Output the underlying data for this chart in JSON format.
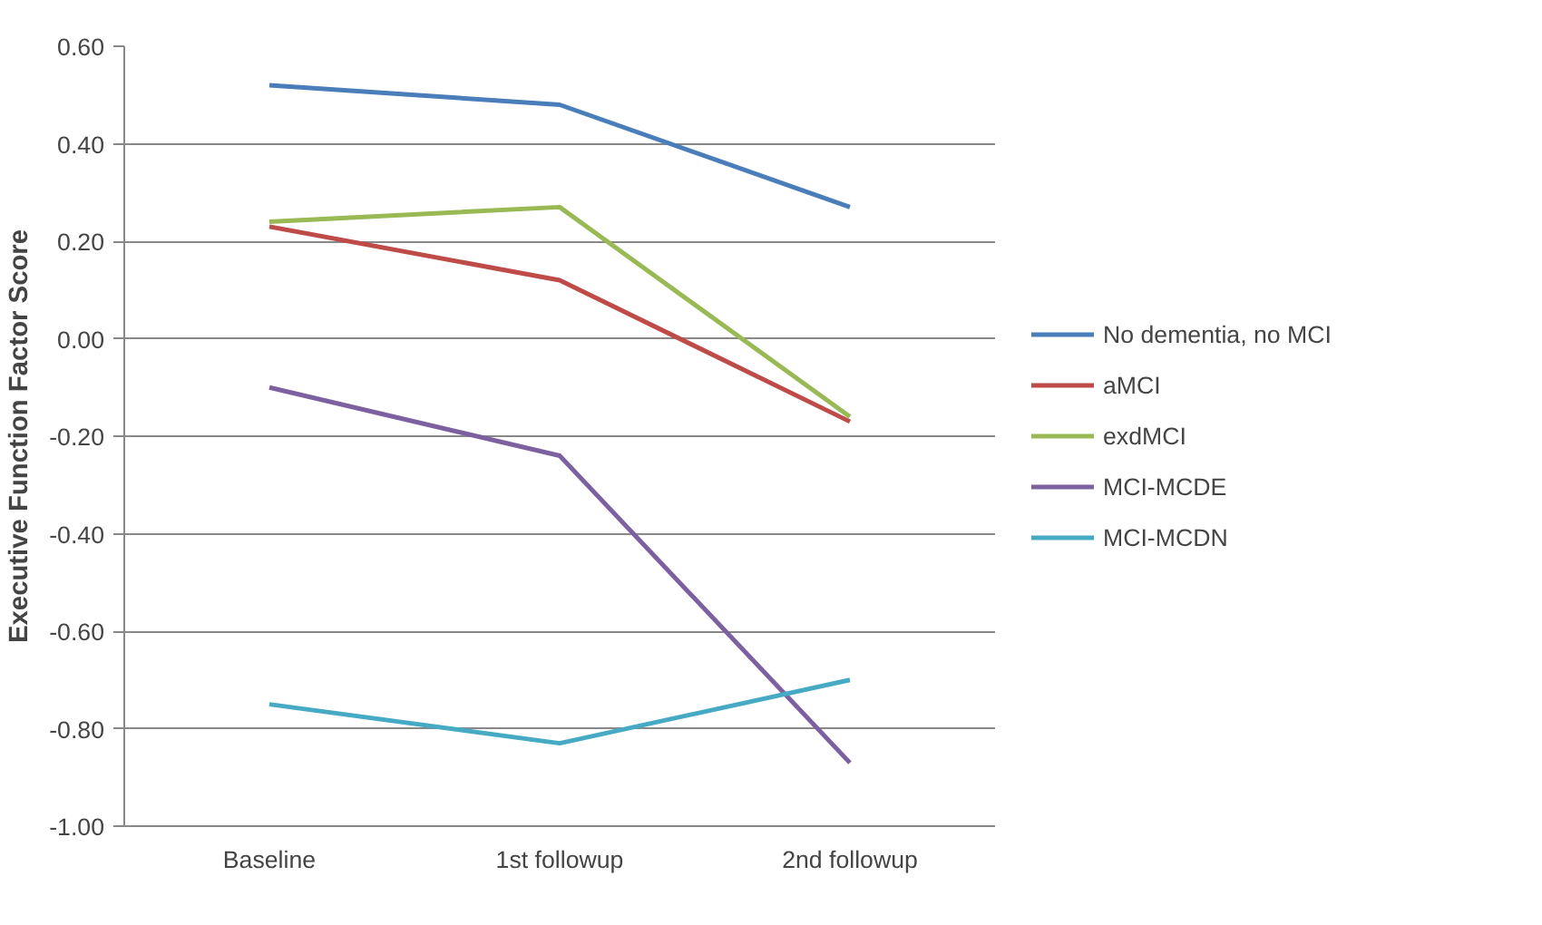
{
  "chart_data": {
    "type": "line",
    "ylabel": "Executive Function Factor Score",
    "categories": [
      "Baseline",
      "1st followup",
      "2nd followup"
    ],
    "series": [
      {
        "name": "No dementia, no MCI",
        "color": "#4a7ebb",
        "values": [
          0.52,
          0.48,
          0.27
        ]
      },
      {
        "name": "aMCI",
        "color": "#be4b48",
        "values": [
          0.23,
          0.12,
          -0.17
        ]
      },
      {
        "name": "exdMCI",
        "color": "#98b954",
        "values": [
          0.24,
          0.27,
          -0.16
        ]
      },
      {
        "name": "MCI-MCDE",
        "color": "#7d60a0",
        "values": [
          -0.1,
          -0.24,
          -0.87
        ]
      },
      {
        "name": "MCI-MCDN",
        "color": "#46aac5",
        "values": [
          -0.75,
          -0.83,
          -0.7
        ]
      }
    ],
    "ylim": [
      -1.0,
      0.6
    ],
    "yticks": [
      {
        "value": -1.0,
        "label": "-1.00"
      },
      {
        "value": -0.8,
        "label": "-0.80"
      },
      {
        "value": -0.6,
        "label": "-0.60"
      },
      {
        "value": -0.4,
        "label": "-0.40"
      },
      {
        "value": -0.2,
        "label": "-0.20"
      },
      {
        "value": 0.0,
        "label": "0.00"
      },
      {
        "value": 0.2,
        "label": "0.20"
      },
      {
        "value": 0.4,
        "label": "0.40"
      },
      {
        "value": 0.6,
        "label": "0.60"
      }
    ],
    "grid": "y",
    "legend": "right",
    "marker": "none",
    "line_style": "solid"
  }
}
